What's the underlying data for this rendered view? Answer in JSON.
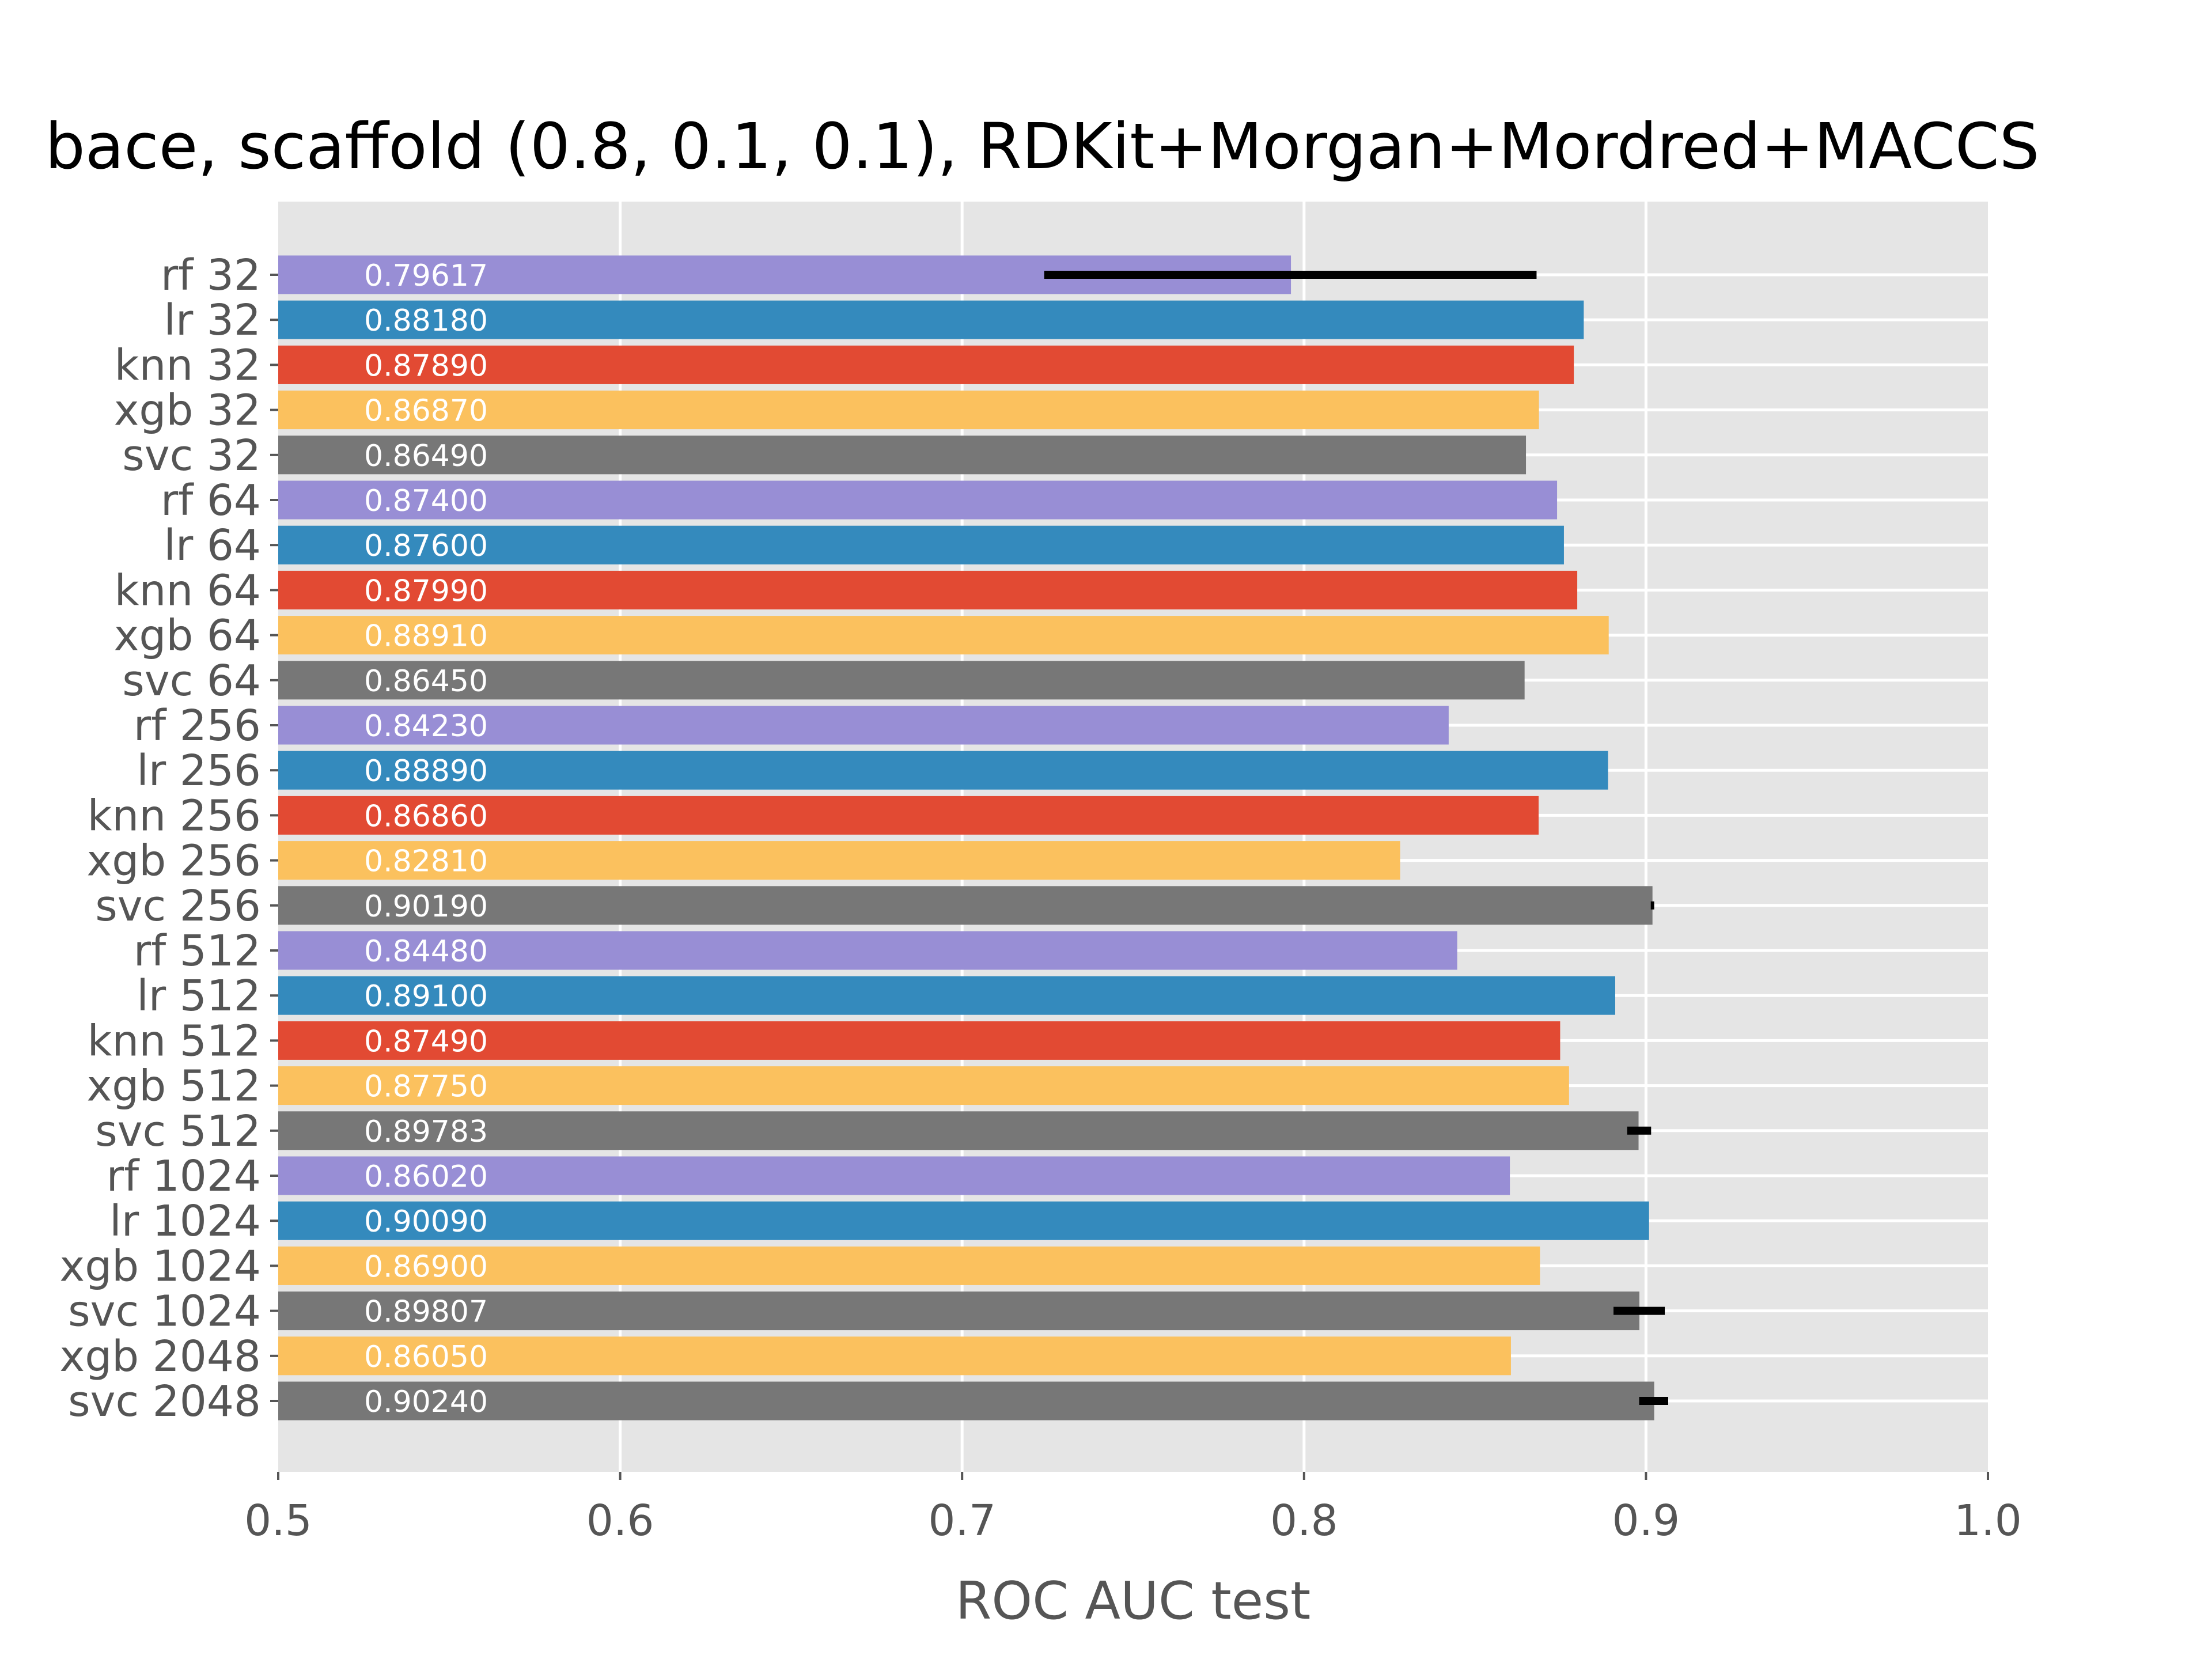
{
  "chart_data": {
    "type": "bar",
    "orientation": "horizontal",
    "title": "bace, scaffold (0.8, 0.1, 0.1), RDKit+Morgan+Mordred+MACCS",
    "xlabel": "ROC AUC test",
    "ylabel": "",
    "xlim": [
      0.5,
      1.0
    ],
    "xticks": [
      {
        "value": 0.5,
        "label": "0.5"
      },
      {
        "value": 0.6,
        "label": "0.6"
      },
      {
        "value": 0.7,
        "label": "0.7"
      },
      {
        "value": 0.8,
        "label": "0.8"
      },
      {
        "value": 0.9,
        "label": "0.9"
      },
      {
        "value": 1.0,
        "label": "1.0"
      }
    ],
    "grid": true,
    "colors": {
      "rf": "#988ED5",
      "lr": "#348ABD",
      "knn": "#E24A33",
      "xgb": "#FBC15E",
      "svc": "#777777",
      "background": "#E5E5E5",
      "grid": "#FFFFFF",
      "errorbar": "#000000"
    },
    "bars": [
      {
        "category": "rf 32",
        "model": "rf",
        "value": 0.79617,
        "label": "0.79617",
        "err": [
          0.724,
          0.868
        ]
      },
      {
        "category": "lr 32",
        "model": "lr",
        "value": 0.8818,
        "label": "0.88180"
      },
      {
        "category": "knn 32",
        "model": "knn",
        "value": 0.8789,
        "label": "0.87890"
      },
      {
        "category": "xgb 32",
        "model": "xgb",
        "value": 0.8687,
        "label": "0.86870"
      },
      {
        "category": "svc 32",
        "model": "svc",
        "value": 0.8649,
        "label": "0.86490"
      },
      {
        "category": "rf 64",
        "model": "rf",
        "value": 0.874,
        "label": "0.87400"
      },
      {
        "category": "lr 64",
        "model": "lr",
        "value": 0.876,
        "label": "0.87600"
      },
      {
        "category": "knn 64",
        "model": "knn",
        "value": 0.8799,
        "label": "0.87990"
      },
      {
        "category": "xgb 64",
        "model": "xgb",
        "value": 0.8891,
        "label": "0.88910"
      },
      {
        "category": "svc 64",
        "model": "svc",
        "value": 0.8645,
        "label": "0.86450"
      },
      {
        "category": "rf 256",
        "model": "rf",
        "value": 0.8423,
        "label": "0.84230"
      },
      {
        "category": "lr 256",
        "model": "lr",
        "value": 0.8889,
        "label": "0.88890"
      },
      {
        "category": "knn 256",
        "model": "knn",
        "value": 0.8686,
        "label": "0.86860"
      },
      {
        "category": "xgb 256",
        "model": "xgb",
        "value": 0.8281,
        "label": "0.82810"
      },
      {
        "category": "svc 256",
        "model": "svc",
        "value": 0.9019,
        "label": "0.90190",
        "err": [
          0.9014,
          0.9024
        ]
      },
      {
        "category": "rf 512",
        "model": "rf",
        "value": 0.8448,
        "label": "0.84480"
      },
      {
        "category": "lr 512",
        "model": "lr",
        "value": 0.891,
        "label": "0.89100"
      },
      {
        "category": "knn 512",
        "model": "knn",
        "value": 0.8749,
        "label": "0.87490"
      },
      {
        "category": "xgb 512",
        "model": "xgb",
        "value": 0.8775,
        "label": "0.87750"
      },
      {
        "category": "svc 512",
        "model": "svc",
        "value": 0.89783,
        "label": "0.89783",
        "err": [
          0.8945,
          0.9015
        ]
      },
      {
        "category": "rf 1024",
        "model": "rf",
        "value": 0.8602,
        "label": "0.86020"
      },
      {
        "category": "lr 1024",
        "model": "lr",
        "value": 0.9009,
        "label": "0.90090"
      },
      {
        "category": "xgb 1024",
        "model": "xgb",
        "value": 0.869,
        "label": "0.86900"
      },
      {
        "category": "svc 1024",
        "model": "svc",
        "value": 0.89807,
        "label": "0.89807",
        "err": [
          0.8905,
          0.9055
        ]
      },
      {
        "category": "xgb 2048",
        "model": "xgb",
        "value": 0.8605,
        "label": "0.86050"
      },
      {
        "category": "svc 2048",
        "model": "svc",
        "value": 0.9024,
        "label": "0.90240",
        "err": [
          0.898,
          0.9065
        ]
      }
    ]
  }
}
